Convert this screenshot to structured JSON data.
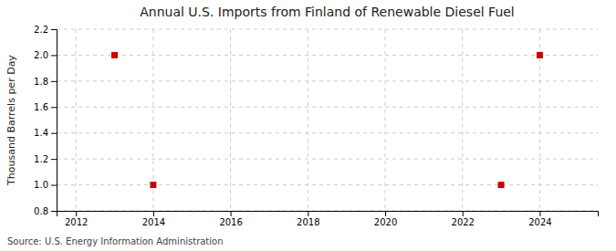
{
  "chart_data": {
    "type": "scatter",
    "title": "Annual U.S. Imports from Finland of Renewable Diesel Fuel",
    "ylabel": "Thousand Barrels per Day",
    "source": "Source: U.S. Energy Information Administration",
    "x": [
      2013,
      2014,
      2023,
      2024
    ],
    "values": [
      2.0,
      1.0,
      1.0,
      2.0
    ],
    "color": "#cc0000",
    "marker": "square",
    "xlim": [
      2011.5,
      2025.5
    ],
    "ylim": [
      0.8,
      2.2
    ],
    "xticks": [
      2012,
      2014,
      2016,
      2018,
      2020,
      2022,
      2024
    ],
    "yticks": [
      0.8,
      {
        "value": 1.0,
        "label": "1.0"
      },
      1.2,
      1.4,
      1.6,
      1.8,
      {
        "value": 2.0,
        "label": "2.0"
      },
      2.2
    ],
    "grid": true
  }
}
